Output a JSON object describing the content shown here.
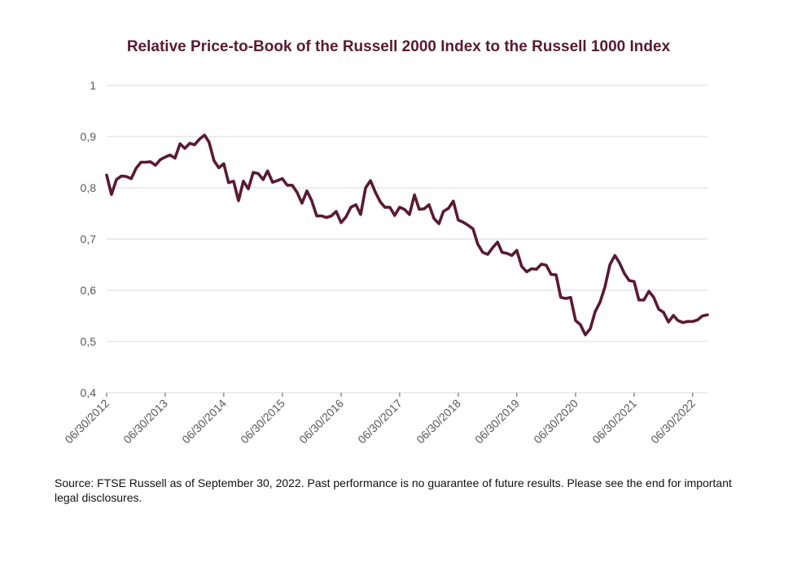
{
  "colors": {
    "line": "#5a1a33",
    "title": "#5a1a33",
    "grid": "#d9d9d9",
    "axis": "#595959"
  },
  "chart_data": {
    "type": "line",
    "title": "Relative Price-to-Book of the Russell 2000 Index to the Russell 1000 Index",
    "xlabel": "",
    "ylabel": "",
    "ylim": [
      0.4,
      1.0
    ],
    "y_ticks": [
      "1",
      "0,9",
      "0,8",
      "0,7",
      "0,6",
      "0,5",
      "0,4"
    ],
    "y_tick_values": [
      1.0,
      0.9,
      0.8,
      0.7,
      0.6,
      0.5,
      0.4
    ],
    "x_ticks": [
      "06/30/2012",
      "06/30/2013",
      "06/30/2014",
      "06/30/2015",
      "06/30/2016",
      "06/30/2017",
      "06/30/2018",
      "06/30/2019",
      "06/30/2020",
      "06/30/2021",
      "06/30/2022"
    ],
    "x_range": [
      "2012-06-30",
      "2022-09-30"
    ],
    "grid": "horizontal",
    "legend": "none",
    "series": [
      {
        "dates": [
          "2012-06",
          "2012-07",
          "2012-08",
          "2012-09",
          "2012-10",
          "2012-11",
          "2012-12",
          "2013-01",
          "2013-02",
          "2013-03",
          "2013-04",
          "2013-05",
          "2013-06",
          "2013-07",
          "2013-08",
          "2013-09",
          "2013-10",
          "2013-11",
          "2013-12",
          "2014-01",
          "2014-02",
          "2014-03",
          "2014-04",
          "2014-05",
          "2014-06",
          "2014-07",
          "2014-08",
          "2014-09",
          "2014-10",
          "2014-11",
          "2014-12",
          "2015-01",
          "2015-02",
          "2015-03",
          "2015-04",
          "2015-05",
          "2015-06",
          "2015-07",
          "2015-08",
          "2015-09",
          "2015-10",
          "2015-11",
          "2015-12",
          "2016-01",
          "2016-02",
          "2016-03",
          "2016-04",
          "2016-05",
          "2016-06",
          "2016-07",
          "2016-08",
          "2016-09",
          "2016-10",
          "2016-11",
          "2016-12",
          "2017-01",
          "2017-02",
          "2017-03",
          "2017-04",
          "2017-05",
          "2017-06",
          "2017-07",
          "2017-08",
          "2017-09",
          "2017-10",
          "2017-11",
          "2017-12",
          "2018-01",
          "2018-02",
          "2018-03",
          "2018-04",
          "2018-05",
          "2018-06",
          "2018-07",
          "2018-08",
          "2018-09",
          "2018-10",
          "2018-11",
          "2018-12",
          "2019-01",
          "2019-02",
          "2019-03",
          "2019-04",
          "2019-05",
          "2019-06",
          "2019-07",
          "2019-08",
          "2019-09",
          "2019-10",
          "2019-11",
          "2019-12",
          "2020-01",
          "2020-02",
          "2020-03",
          "2020-04",
          "2020-05",
          "2020-06",
          "2020-07",
          "2020-08",
          "2020-09",
          "2020-10",
          "2020-11",
          "2020-12",
          "2021-01",
          "2021-02",
          "2021-03",
          "2021-04",
          "2021-05",
          "2021-06",
          "2021-07",
          "2021-08",
          "2021-09",
          "2021-10",
          "2021-11",
          "2021-12",
          "2022-01",
          "2022-02",
          "2022-03",
          "2022-04",
          "2022-05",
          "2022-06",
          "2022-07",
          "2022-08",
          "2022-09"
        ],
        "values": [
          0.825,
          0.787,
          0.816,
          0.823,
          0.822,
          0.818,
          0.838,
          0.85,
          0.85,
          0.851,
          0.844,
          0.855,
          0.86,
          0.864,
          0.858,
          0.886,
          0.877,
          0.887,
          0.884,
          0.895,
          0.903,
          0.889,
          0.853,
          0.839,
          0.847,
          0.81,
          0.813,
          0.775,
          0.813,
          0.798,
          0.83,
          0.828,
          0.816,
          0.833,
          0.811,
          0.814,
          0.818,
          0.805,
          0.805,
          0.791,
          0.77,
          0.794,
          0.775,
          0.745,
          0.745,
          0.742,
          0.745,
          0.754,
          0.732,
          0.743,
          0.762,
          0.767,
          0.748,
          0.8,
          0.814,
          0.791,
          0.772,
          0.762,
          0.762,
          0.746,
          0.762,
          0.758,
          0.748,
          0.786,
          0.758,
          0.759,
          0.767,
          0.74,
          0.73,
          0.754,
          0.76,
          0.774,
          0.737,
          0.733,
          0.727,
          0.72,
          0.69,
          0.674,
          0.67,
          0.683,
          0.694,
          0.674,
          0.672,
          0.668,
          0.678,
          0.647,
          0.636,
          0.642,
          0.641,
          0.651,
          0.649,
          0.631,
          0.63,
          0.586,
          0.584,
          0.586,
          0.541,
          0.533,
          0.513,
          0.525,
          0.558,
          0.577,
          0.606,
          0.65,
          0.668,
          0.654,
          0.633,
          0.619,
          0.617,
          0.581,
          0.581,
          0.598,
          0.586,
          0.563,
          0.557,
          0.538,
          0.551,
          0.541,
          0.537,
          0.539,
          0.539,
          0.542,
          0.55,
          0.552
        ]
      }
    ]
  },
  "footnote": "Source: FTSE Russell as of September 30, 2022. Past performance is no guarantee of future results. Please see the end for important legal disclosures."
}
